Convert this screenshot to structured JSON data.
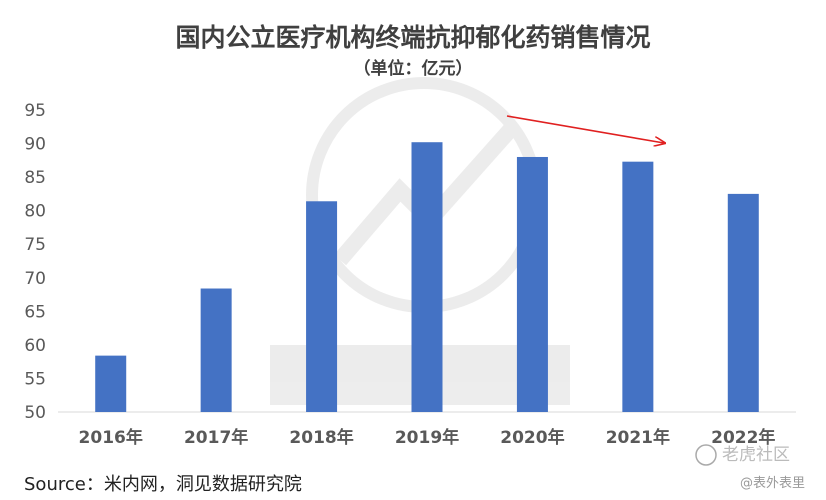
{
  "chart_data": {
    "type": "bar",
    "title": "国内公立医疗机构终端抗抑郁化药销售情况",
    "subtitle": "（单位：亿元）",
    "categories": [
      "2016年",
      "2017年",
      "2018年",
      "2019年",
      "2020年",
      "2021年",
      "2022年"
    ],
    "values": [
      58.4,
      68.4,
      81.4,
      90.2,
      88.0,
      87.3,
      82.5
    ],
    "ylim": [
      50,
      95
    ],
    "yticks": [
      50,
      55,
      60,
      65,
      70,
      75,
      80,
      85,
      90,
      95
    ],
    "bar_color": "#4472C4",
    "grid": false,
    "annotation": "red-arrow-declining-trend"
  },
  "source": "Source：米内网，洞见数据研究院",
  "watermark": {
    "bottom_right_1": "老虎社区",
    "bottom_right_2": "@表外表里"
  },
  "colors": {
    "bar": "#4472C4",
    "arrow": "#E02020",
    "text": "#404040"
  }
}
